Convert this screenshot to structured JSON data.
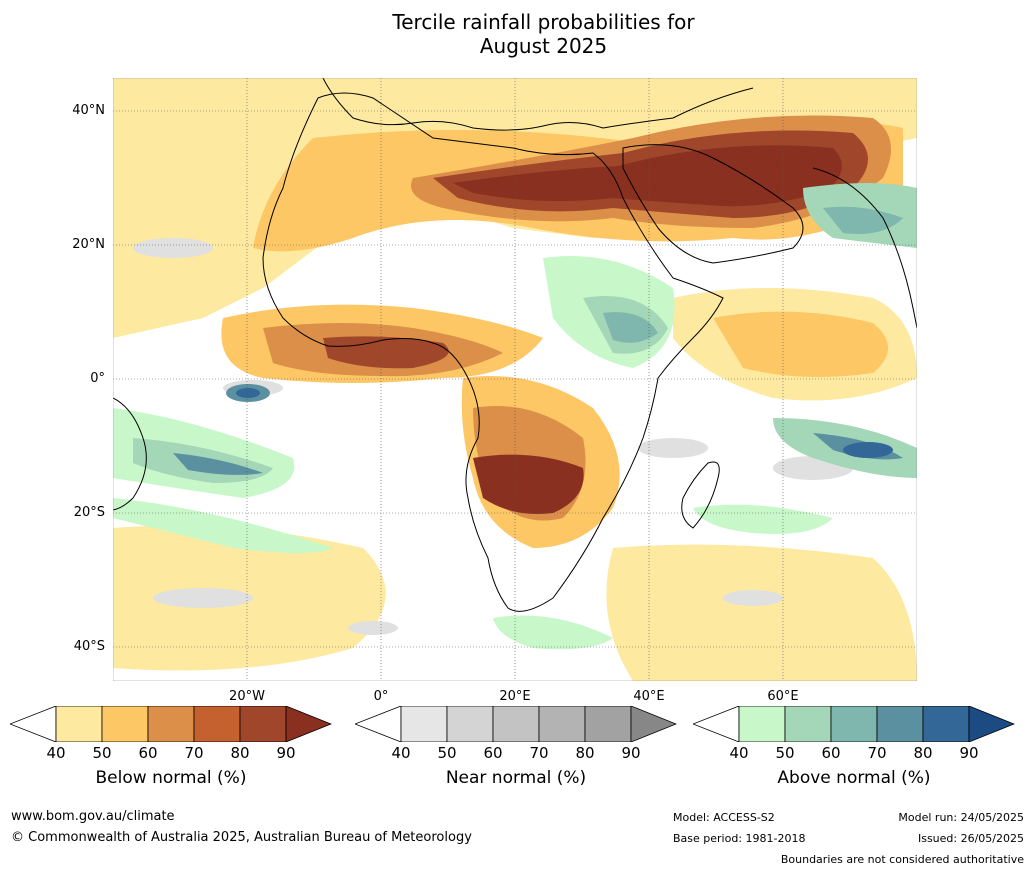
{
  "title_line1": "Tercile rainfall probabilities for",
  "title_line2": "August 2025",
  "lat_labels": [
    "40°N",
    "20°N",
    "0°",
    "20°S",
    "40°S"
  ],
  "lon_labels": [
    "20°W",
    "0°",
    "20°E",
    "40°E",
    "60°E"
  ],
  "colorbars": [
    {
      "label": "Below normal (%)",
      "ticks": [
        "40",
        "50",
        "60",
        "70",
        "80",
        "90"
      ],
      "colors": [
        "#ffffff",
        "#fdeaa0",
        "#fdc765",
        "#dc8f48",
        "#c5612f",
        "#a0462a",
        "#8a3020"
      ]
    },
    {
      "label": "Near normal (%)",
      "ticks": [
        "40",
        "50",
        "60",
        "70",
        "80",
        "90"
      ],
      "colors": [
        "#ffffff",
        "#e6e6e6",
        "#d4d4d4",
        "#c3c3c3",
        "#b3b3b3",
        "#a2a2a2",
        "#878787"
      ]
    },
    {
      "label": "Above normal (%)",
      "ticks": [
        "40",
        "50",
        "60",
        "70",
        "80",
        "90"
      ],
      "colors": [
        "#ffffff",
        "#c8f8c9",
        "#a4d6b8",
        "#7fb6ad",
        "#5b90a0",
        "#326797",
        "#1c4b84"
      ]
    }
  ],
  "footer": {
    "url": "www.bom.gov.au/climate",
    "copyright": "© Commonwealth of Australia 2025, Australian Bureau of Meteorology",
    "model": "Model: ACCESS-S2",
    "base_period": "Base period: 1981-2018",
    "model_run": "Model run: 24/05/2025",
    "issued": "Issued: 26/05/2025",
    "disclaimer": "Boundaries are not considered authoritative"
  }
}
